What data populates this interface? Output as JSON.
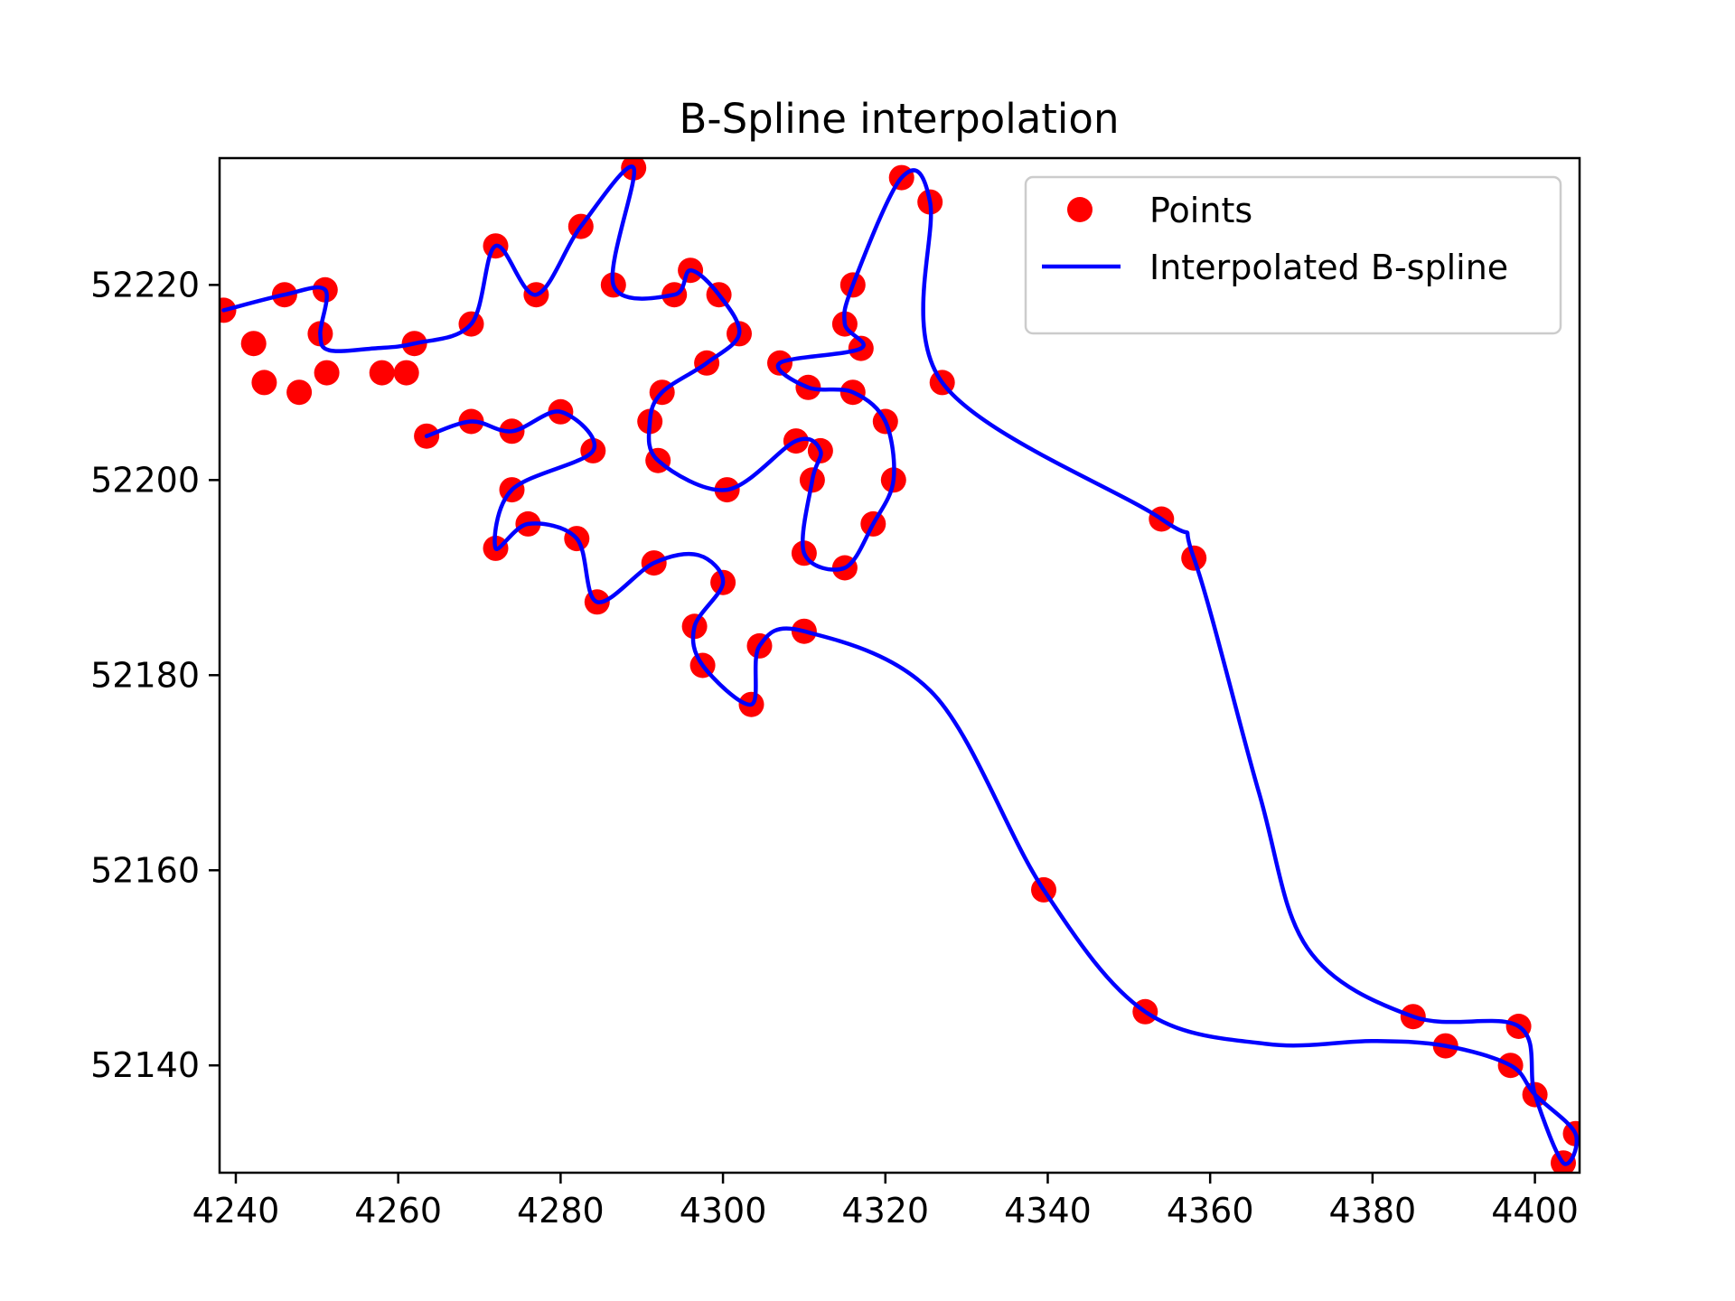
{
  "chart_data": {
    "type": "line",
    "title": "B-Spline interpolation",
    "xlabel": "",
    "ylabel": "",
    "xlim": [
      4238,
      4405.5
    ],
    "ylim": [
      52129,
      52233
    ],
    "xticks": [
      4240,
      4260,
      4280,
      4300,
      4320,
      4340,
      4360,
      4380,
      4400
    ],
    "yticks": [
      52140,
      52160,
      52180,
      52200,
      52220
    ],
    "grid": false,
    "legend_placement": "top-right",
    "series": [
      {
        "name": "Points",
        "kind": "scatter",
        "color": "#ff0000",
        "points": [
          [
            4238.5,
            52217.4
          ],
          [
            4242.2,
            52214.0
          ],
          [
            4243.5,
            52210.0
          ],
          [
            4247.8,
            52209.0
          ],
          [
            4251.2,
            52211.0
          ],
          [
            4258.0,
            52211.0
          ],
          [
            4261.0,
            52211.0
          ],
          [
            4250.4,
            52215.0
          ],
          [
            4251.0,
            52219.5
          ],
          [
            4246.0,
            52219.0
          ],
          [
            4262.0,
            52214.0
          ],
          [
            4269.0,
            52216.0
          ],
          [
            4272.0,
            52224.0
          ],
          [
            4277.0,
            52219.0
          ],
          [
            4282.5,
            52226.0
          ],
          [
            4289.0,
            52232.0
          ],
          [
            4286.5,
            52220.0
          ],
          [
            4294.0,
            52219.0
          ],
          [
            4296.0,
            52221.5
          ],
          [
            4299.5,
            52219.0
          ],
          [
            4302.0,
            52215.0
          ],
          [
            4298.0,
            52212.0
          ],
          [
            4292.5,
            52209.0
          ],
          [
            4291.0,
            52206.0
          ],
          [
            4292.0,
            52202.0
          ],
          [
            4300.5,
            52199.0
          ],
          [
            4309.0,
            52204.0
          ],
          [
            4312.0,
            52203.0
          ],
          [
            4311.0,
            52200.0
          ],
          [
            4310.0,
            52192.5
          ],
          [
            4315.0,
            52191.0
          ],
          [
            4318.5,
            52195.5
          ],
          [
            4321.0,
            52200.0
          ],
          [
            4320.0,
            52206.0
          ],
          [
            4316.0,
            52209.0
          ],
          [
            4310.5,
            52209.5
          ],
          [
            4307.0,
            52212.0
          ],
          [
            4317.0,
            52213.5
          ],
          [
            4315.0,
            52216.0
          ],
          [
            4316.0,
            52220.0
          ],
          [
            4322.0,
            52231.0
          ],
          [
            4325.5,
            52228.5
          ],
          [
            4327.0,
            52210.0
          ],
          [
            4354.0,
            52196.0
          ],
          [
            4358.0,
            52192.0
          ],
          [
            4385.0,
            52145.0
          ],
          [
            4398.0,
            52144.0
          ],
          [
            4389.0,
            52142.0
          ],
          [
            4397.0,
            52140.0
          ],
          [
            4400.0,
            52137.0
          ],
          [
            4405.0,
            52133.0
          ],
          [
            4403.5,
            52130.0
          ],
          [
            4339.5,
            52158.0
          ],
          [
            4352.0,
            52145.5
          ],
          [
            4310.0,
            52184.5
          ],
          [
            4304.5,
            52183.0
          ],
          [
            4303.5,
            52177.0
          ],
          [
            4297.5,
            52181.0
          ],
          [
            4296.5,
            52185.0
          ],
          [
            4300.0,
            52189.5
          ],
          [
            4291.5,
            52191.5
          ],
          [
            4284.5,
            52187.5
          ],
          [
            4282.0,
            52194.0
          ],
          [
            4276.0,
            52195.5
          ],
          [
            4272.0,
            52193.0
          ],
          [
            4274.0,
            52199.0
          ],
          [
            4284.0,
            52203.0
          ],
          [
            4280.0,
            52207.0
          ],
          [
            4274.0,
            52205.0
          ],
          [
            4269.0,
            52206.0
          ],
          [
            4263.5,
            52204.5
          ]
        ]
      },
      {
        "name": "Interpolated B-spline",
        "kind": "line",
        "color": "#0000ff",
        "points": [
          [
            4238.5,
            52217.4
          ],
          [
            4246.0,
            52219.0
          ],
          [
            4251.0,
            52219.5
          ],
          [
            4250.4,
            52215.0
          ],
          [
            4251.5,
            52213.3
          ],
          [
            4257.0,
            52213.5
          ],
          [
            4262.0,
            52214.0
          ],
          [
            4269.0,
            52216.0
          ],
          [
            4272.0,
            52224.0
          ],
          [
            4277.0,
            52219.0
          ],
          [
            4282.5,
            52226.0
          ],
          [
            4289.0,
            52232.0
          ],
          [
            4286.5,
            52220.0
          ],
          [
            4294.0,
            52219.0
          ],
          [
            4296.0,
            52221.5
          ],
          [
            4299.5,
            52219.0
          ],
          [
            4302.0,
            52215.0
          ],
          [
            4298.0,
            52212.0
          ],
          [
            4292.5,
            52209.0
          ],
          [
            4291.0,
            52206.0
          ],
          [
            4292.0,
            52202.0
          ],
          [
            4300.5,
            52199.0
          ],
          [
            4309.0,
            52204.0
          ],
          [
            4312.0,
            52203.0
          ],
          [
            4311.0,
            52200.0
          ],
          [
            4310.0,
            52192.5
          ],
          [
            4315.0,
            52191.0
          ],
          [
            4318.5,
            52195.5
          ],
          [
            4321.0,
            52200.0
          ],
          [
            4320.0,
            52206.0
          ],
          [
            4316.0,
            52209.0
          ],
          [
            4310.5,
            52209.5
          ],
          [
            4307.0,
            52212.0
          ],
          [
            4317.0,
            52213.5
          ],
          [
            4315.0,
            52216.0
          ],
          [
            4316.0,
            52220.0
          ],
          [
            4322.0,
            52231.0
          ],
          [
            4325.5,
            52228.5
          ],
          [
            4327.0,
            52210.0
          ],
          [
            4354.0,
            52196.0
          ],
          [
            4358.0,
            52192.0
          ],
          [
            4366.0,
            52168.0
          ],
          [
            4372.0,
            52152.0
          ],
          [
            4385.0,
            52145.0
          ],
          [
            4398.0,
            52144.0
          ],
          [
            4400.0,
            52137.0
          ],
          [
            4403.5,
            52130.0
          ],
          [
            4405.0,
            52133.0
          ],
          [
            4400.0,
            52137.0
          ],
          [
            4397.0,
            52140.0
          ],
          [
            4389.0,
            52142.0
          ],
          [
            4380.0,
            52142.5
          ],
          [
            4367.0,
            52142.2
          ],
          [
            4352.0,
            52145.5
          ],
          [
            4339.5,
            52158.0
          ],
          [
            4326.0,
            52178.0
          ],
          [
            4310.0,
            52184.5
          ],
          [
            4304.5,
            52183.0
          ],
          [
            4303.5,
            52177.0
          ],
          [
            4297.5,
            52181.0
          ],
          [
            4296.5,
            52185.0
          ],
          [
            4300.0,
            52189.5
          ],
          [
            4297.0,
            52192.3
          ],
          [
            4291.5,
            52191.5
          ],
          [
            4284.5,
            52187.5
          ],
          [
            4282.0,
            52194.0
          ],
          [
            4276.0,
            52195.5
          ],
          [
            4272.0,
            52193.0
          ],
          [
            4274.0,
            52199.0
          ],
          [
            4284.0,
            52203.0
          ],
          [
            4280.0,
            52207.0
          ],
          [
            4274.0,
            52205.0
          ],
          [
            4269.0,
            52206.0
          ],
          [
            4263.5,
            52204.5
          ]
        ]
      }
    ]
  }
}
